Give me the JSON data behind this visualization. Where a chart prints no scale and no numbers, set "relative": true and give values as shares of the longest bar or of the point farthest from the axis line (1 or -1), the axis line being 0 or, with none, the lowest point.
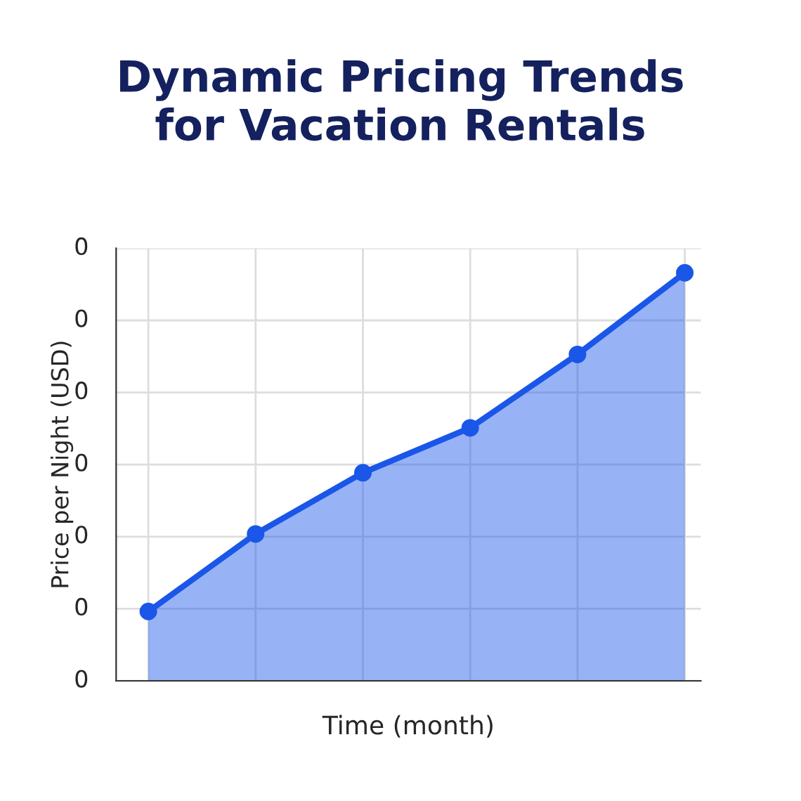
{
  "chart_data": {
    "type": "area",
    "title": "Dynamic Pricing Trends\nfor Vacation Rentals",
    "xlabel": "Time (month)",
    "ylabel": "Price per Night (USD)",
    "categories": [
      null,
      null,
      null,
      null,
      null,
      null
    ],
    "series": [
      {
        "color": "#1a56e8",
        "values": [
          0.17,
          0.36,
          0.51,
          0.62,
          0.8,
          1.0
        ]
      }
    ],
    "relative": true,
    "annotations": [
      "0",
      "0",
      "0",
      "0",
      "0",
      "0",
      "0"
    ],
    "grid": true,
    "marker": "circle",
    "line_style": "solid"
  }
}
